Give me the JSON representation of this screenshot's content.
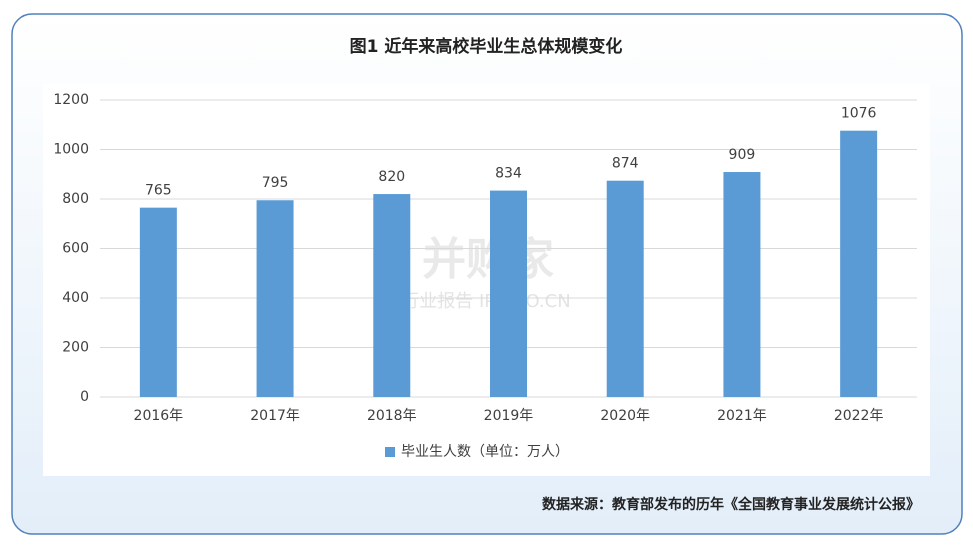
{
  "chart_data": {
    "type": "bar",
    "title": "图1  近年来高校毕业生总体规模变化",
    "categories": [
      "2016年",
      "2017年",
      "2018年",
      "2019年",
      "2020年",
      "2021年",
      "2022年"
    ],
    "series": [
      {
        "name": "毕业生人数（单位：万人）",
        "color": "#5b9bd5",
        "values": [
          765,
          795,
          820,
          834,
          874,
          909,
          1076
        ]
      }
    ],
    "ylim": [
      0,
      1200
    ],
    "yticks": [
      0,
      200,
      400,
      600,
      800,
      1000,
      1200
    ],
    "grid": true,
    "source": "数据来源：教育部发布的历年《全国教育事业发展统计公报》",
    "watermark": [
      "并购家",
      "行业报告 IPOIPO.CN"
    ]
  }
}
